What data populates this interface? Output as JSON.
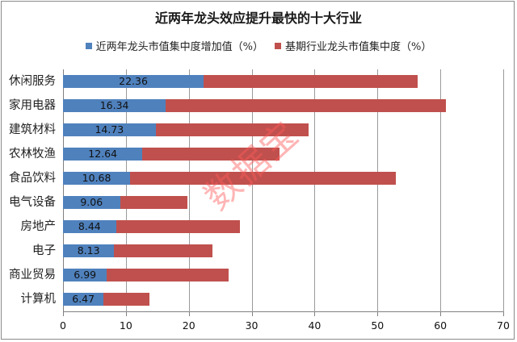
{
  "chart_data": {
    "type": "bar",
    "orientation": "horizontal",
    "stacked": true,
    "title": "近两年龙头效应提升最快的十大行业",
    "xlabel": "",
    "ylabel": "",
    "xlim": [
      0,
      70
    ],
    "x_ticks": [
      0,
      10,
      20,
      30,
      40,
      50,
      60,
      70
    ],
    "grid": true,
    "legend_position": "top",
    "categories": [
      "休闲服务",
      "家用电器",
      "建筑材料",
      "农林牧渔",
      "食品饮料",
      "电气设备",
      "房地产",
      "电子",
      "商业贸易",
      "计算机"
    ],
    "series": [
      {
        "name": "近两年龙头市值集中度增加值（%）",
        "color": "#4f81bd",
        "values": [
          22.36,
          16.34,
          14.73,
          12.64,
          10.68,
          9.06,
          8.44,
          8.13,
          6.99,
          6.47
        ],
        "data_labels": [
          "22.36",
          "16.34",
          "14.73",
          "12.64",
          "10.68",
          "9.06",
          "8.44",
          "8.13",
          "6.99",
          "6.47"
        ]
      },
      {
        "name": "基期行业龙头市值集中度（%）",
        "color": "#c0504d",
        "values": [
          34.0,
          44.5,
          24.3,
          21.8,
          42.3,
          10.7,
          19.7,
          15.6,
          19.3,
          7.3
        ]
      }
    ],
    "watermark": "数据宝"
  },
  "legend": {
    "items": [
      {
        "label": "近两年龙头市值集中度增加值（%）",
        "color": "#4f81bd"
      },
      {
        "label": "基期行业龙头市值集中度（%）",
        "color": "#c0504d"
      }
    ]
  }
}
